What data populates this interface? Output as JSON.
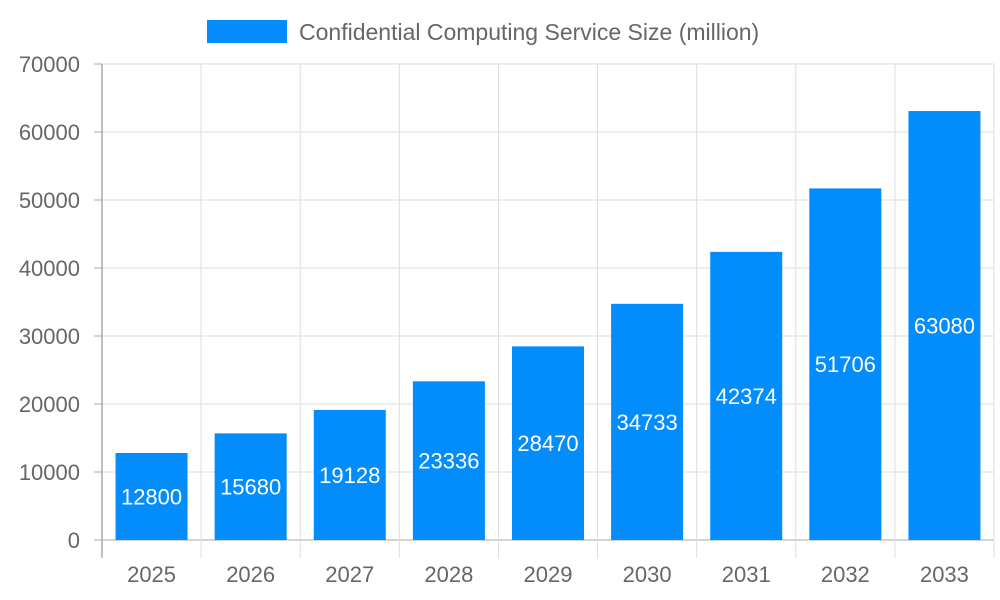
{
  "chart_data": {
    "type": "bar",
    "categories": [
      "2025",
      "2026",
      "2027",
      "2028",
      "2029",
      "2030",
      "2031",
      "2032",
      "2033"
    ],
    "series": [
      {
        "name": "Confidential Computing Service Size (million)",
        "values": [
          12800,
          15680,
          19128,
          23336,
          28470,
          34733,
          42374,
          51706,
          63080
        ],
        "color": "#038cfc"
      }
    ],
    "title": "",
    "xlabel": "",
    "ylabel": "",
    "ylim": [
      0,
      70000
    ],
    "yticks": [
      0,
      10000,
      20000,
      30000,
      40000,
      50000,
      60000,
      70000
    ],
    "grid": true,
    "legend": "top-center",
    "data_labels": true,
    "colors": {
      "bar": "#038cfc",
      "grid": "#dddddd",
      "axis": "#aaaaaa",
      "text": "#666666",
      "label": "#ffffff"
    }
  }
}
